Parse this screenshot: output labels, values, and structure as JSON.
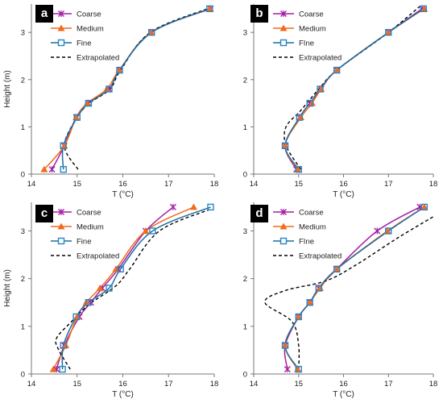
{
  "colors": {
    "coarse": "#a31fa3",
    "medium": "#f26a1b",
    "fine": "#1d6fa0",
    "extrapolated": "#000000",
    "fine_marker_edge": "#2a86c6"
  },
  "legend": {
    "coarse": "Coarse",
    "medium": "Medium",
    "fine": "Fine",
    "extrapolated": "Extrapolated"
  },
  "chart_data": [
    {
      "panel": "a",
      "type": "line",
      "xlabel": "T (°C)",
      "ylabel": "Height (m)",
      "xlim": [
        14,
        18
      ],
      "ylim": [
        0,
        3.6
      ],
      "xticks": [
        "14",
        "15",
        "16",
        "17",
        "18"
      ],
      "yticks": [
        "0",
        "1",
        "2",
        "3"
      ],
      "legend_labels": [
        "Coarse",
        "Medium",
        "Fine",
        "Extrapolated"
      ],
      "series": [
        {
          "name": "Coarse",
          "marker": "x",
          "points": [
            [
              14.45,
              0.1
            ],
            [
              14.72,
              0.6
            ],
            [
              14.98,
              1.2
            ],
            [
              15.25,
              1.5
            ],
            [
              15.7,
              1.8
            ],
            [
              15.93,
              2.2
            ],
            [
              16.62,
              3.0
            ],
            [
              17.92,
              3.5
            ]
          ]
        },
        {
          "name": "Medium",
          "marker": "triangle",
          "points": [
            [
              14.28,
              0.1
            ],
            [
              14.72,
              0.6
            ],
            [
              14.98,
              1.2
            ],
            [
              15.22,
              1.5
            ],
            [
              15.65,
              1.8
            ],
            [
              15.92,
              2.2
            ],
            [
              16.62,
              3.0
            ],
            [
              17.9,
              3.5
            ]
          ]
        },
        {
          "name": "Fine",
          "marker": "square",
          "points": [
            [
              14.7,
              0.1
            ],
            [
              14.7,
              0.6
            ],
            [
              15.0,
              1.2
            ],
            [
              15.25,
              1.5
            ],
            [
              15.7,
              1.8
            ],
            [
              15.93,
              2.2
            ],
            [
              16.63,
              3.0
            ],
            [
              17.9,
              3.5
            ]
          ]
        },
        {
          "name": "Extrapolated",
          "marker": "none",
          "points": [
            [
              15.02,
              0.1
            ],
            [
              14.72,
              0.6
            ],
            [
              15.0,
              1.2
            ],
            [
              15.27,
              1.5
            ],
            [
              15.72,
              1.8
            ],
            [
              15.95,
              2.2
            ],
            [
              16.6,
              3.0
            ],
            [
              17.85,
              3.5
            ]
          ]
        }
      ]
    },
    {
      "panel": "b",
      "type": "line",
      "xlabel": "T (°C)",
      "ylabel": "",
      "xlim": [
        14,
        18
      ],
      "ylim": [
        0,
        3.6
      ],
      "xticks": [
        "14",
        "15",
        "16",
        "17",
        "18"
      ],
      "yticks": [
        "0",
        "1",
        "2",
        "3"
      ],
      "legend_labels": [
        "Coarse",
        "Medium",
        "FIne",
        "Extrapolated"
      ],
      "series": [
        {
          "name": "Coarse",
          "marker": "x",
          "points": [
            [
              14.95,
              0.1
            ],
            [
              14.7,
              0.6
            ],
            [
              15.02,
              1.2
            ],
            [
              15.25,
              1.5
            ],
            [
              15.5,
              1.8
            ],
            [
              15.85,
              2.2
            ],
            [
              17.0,
              3.0
            ],
            [
              17.75,
              3.5
            ]
          ]
        },
        {
          "name": "Medium",
          "marker": "triangle",
          "points": [
            [
              14.98,
              0.1
            ],
            [
              14.7,
              0.6
            ],
            [
              15.05,
              1.2
            ],
            [
              15.3,
              1.5
            ],
            [
              15.5,
              1.8
            ],
            [
              15.85,
              2.2
            ],
            [
              17.0,
              3.0
            ],
            [
              17.8,
              3.5
            ]
          ]
        },
        {
          "name": "FIne",
          "marker": "square",
          "points": [
            [
              15.0,
              0.1
            ],
            [
              14.7,
              0.6
            ],
            [
              15.02,
              1.2
            ],
            [
              15.25,
              1.5
            ],
            [
              15.48,
              1.8
            ],
            [
              15.85,
              2.2
            ],
            [
              17.0,
              3.0
            ],
            [
              17.78,
              3.5
            ]
          ]
        },
        {
          "name": "Extrapolated",
          "marker": "none",
          "points": [
            [
              15.05,
              0.1
            ],
            [
              14.72,
              0.6
            ],
            [
              14.72,
              1.0
            ],
            [
              15.05,
              1.35
            ],
            [
              15.45,
              1.8
            ],
            [
              15.85,
              2.2
            ],
            [
              17.0,
              3.0
            ],
            [
              17.7,
              3.55
            ]
          ]
        }
      ]
    },
    {
      "panel": "c",
      "type": "line",
      "xlabel": "T (°C)",
      "ylabel": "Height (m)",
      "xlim": [
        14,
        18
      ],
      "ylim": [
        0,
        3.6
      ],
      "xticks": [
        "14",
        "15",
        "16",
        "17",
        "18"
      ],
      "yticks": [
        "0",
        "1",
        "2",
        "3"
      ],
      "legend_labels": [
        "Coarse",
        "Medium",
        "Fine",
        "Extrapolated"
      ],
      "series": [
        {
          "name": "Coarse",
          "marker": "x",
          "points": [
            [
              14.55,
              0.1
            ],
            [
              14.72,
              0.6
            ],
            [
              15.05,
              1.2
            ],
            [
              15.3,
              1.5
            ],
            [
              15.55,
              1.8
            ],
            [
              15.9,
              2.2
            ],
            [
              16.5,
              3.0
            ],
            [
              17.1,
              3.5
            ]
          ]
        },
        {
          "name": "Medium",
          "marker": "triangle",
          "points": [
            [
              14.48,
              0.1
            ],
            [
              14.75,
              0.6
            ],
            [
              15.0,
              1.2
            ],
            [
              15.2,
              1.5
            ],
            [
              15.5,
              1.8
            ],
            [
              15.85,
              2.2
            ],
            [
              16.5,
              3.0
            ],
            [
              17.55,
              3.5
            ]
          ]
        },
        {
          "name": "Fine",
          "marker": "square",
          "points": [
            [
              14.68,
              0.1
            ],
            [
              14.7,
              0.6
            ],
            [
              14.98,
              1.2
            ],
            [
              15.25,
              1.5
            ],
            [
              15.7,
              1.8
            ],
            [
              15.95,
              2.2
            ],
            [
              16.65,
              3.0
            ],
            [
              17.92,
              3.5
            ]
          ]
        },
        {
          "name": "Extrapolated",
          "marker": "none",
          "points": [
            [
              14.85,
              0.1
            ],
            [
              14.6,
              0.5
            ],
            [
              14.55,
              0.75
            ],
            [
              14.88,
              1.1
            ],
            [
              15.25,
              1.45
            ],
            [
              15.85,
              1.85
            ],
            [
              16.15,
              2.2
            ],
            [
              16.8,
              3.0
            ],
            [
              17.9,
              3.45
            ]
          ]
        }
      ]
    },
    {
      "panel": "d",
      "type": "line",
      "xlabel": "T (°C)",
      "ylabel": "",
      "xlim": [
        14,
        18
      ],
      "ylim": [
        0,
        3.6
      ],
      "xticks": [
        "14",
        "15",
        "16",
        "17",
        "18"
      ],
      "yticks": [
        "0",
        "1",
        "2",
        "3"
      ],
      "legend_labels": [
        "Coarse",
        "Medium",
        "FIne",
        "Extrapolated"
      ],
      "series": [
        {
          "name": "Coarse",
          "marker": "x",
          "points": [
            [
              14.75,
              0.1
            ],
            [
              14.7,
              0.6
            ],
            [
              15.0,
              1.2
            ],
            [
              15.25,
              1.5
            ],
            [
              15.45,
              1.8
            ],
            [
              15.85,
              2.2
            ],
            [
              16.75,
              3.0
            ],
            [
              17.7,
              3.5
            ]
          ]
        },
        {
          "name": "Medium",
          "marker": "triangle",
          "points": [
            [
              14.98,
              0.1
            ],
            [
              14.7,
              0.6
            ],
            [
              15.0,
              1.2
            ],
            [
              15.25,
              1.5
            ],
            [
              15.48,
              1.8
            ],
            [
              15.85,
              2.2
            ],
            [
              16.98,
              3.0
            ],
            [
              17.8,
              3.5
            ]
          ]
        },
        {
          "name": "FIne",
          "marker": "square",
          "points": [
            [
              15.0,
              0.1
            ],
            [
              14.7,
              0.6
            ],
            [
              15.0,
              1.2
            ],
            [
              15.25,
              1.5
            ],
            [
              15.45,
              1.8
            ],
            [
              15.85,
              2.2
            ],
            [
              17.0,
              3.0
            ],
            [
              17.8,
              3.5
            ]
          ]
        },
        {
          "name": "Extrapolated",
          "marker": "none",
          "points": [
            [
              15.0,
              0.1
            ],
            [
              15.0,
              0.6
            ],
            [
              14.85,
              1.1
            ],
            [
              14.25,
              1.5
            ],
            [
              14.7,
              1.75
            ],
            [
              15.6,
              1.95
            ],
            [
              16.3,
              2.3
            ],
            [
              17.2,
              2.85
            ],
            [
              18.0,
              3.3
            ]
          ]
        }
      ]
    }
  ]
}
